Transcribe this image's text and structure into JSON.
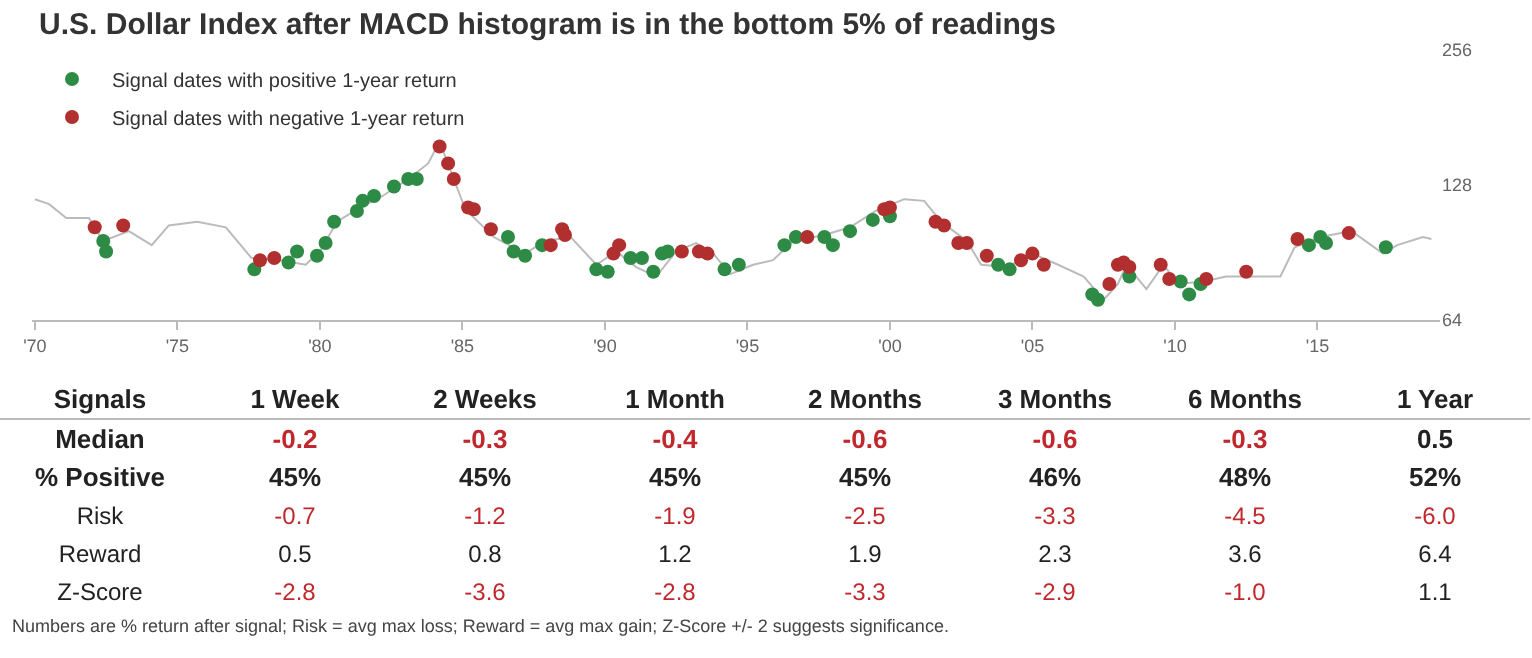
{
  "chart_data": [
    {
      "type": "line",
      "title": "U.S. Dollar Index after MACD histogram is in the bottom 5% of readings",
      "log": true,
      "grid": false,
      "legend": "top left",
      "xlim": [
        1969.9,
        2019.3
      ],
      "xticks": [
        {
          "value": 1970,
          "label": "'70"
        },
        {
          "value": 1975,
          "label": "'75"
        },
        {
          "value": 1980,
          "label": "'80"
        },
        {
          "value": 1985,
          "label": "'85"
        },
        {
          "value": 1990,
          "label": "'90"
        },
        {
          "value": 1995,
          "label": "'95"
        },
        {
          "value": 2000,
          "label": "'00"
        },
        {
          "value": 2005,
          "label": "'05"
        },
        {
          "value": 2010,
          "label": "'10"
        },
        {
          "value": 2015,
          "label": "'15"
        }
      ],
      "ylim": [
        64,
        256
      ],
      "yticks": [
        64,
        128,
        256
      ],
      "series": [
        {
          "marker": "none",
          "color": "#bbbbbb",
          "x": [
            1970.0,
            1970.5,
            1971.1,
            1971.9,
            1972.4,
            1973.3,
            1974.1,
            1974.7,
            1975.7,
            1976.7,
            1977.6,
            1978.6,
            1979.5,
            1980.0,
            1980.6,
            1981.3,
            1982.2,
            1983.1,
            1983.8,
            1984.2,
            1984.7,
            1985.1,
            1986.1,
            1987.2,
            1987.9,
            1988.8,
            1989.7,
            1990.4,
            1991.1,
            1991.8,
            1992.5,
            1993.2,
            1993.8,
            1994.4,
            1995.2,
            1995.9,
            1996.6,
            1997.7,
            1998.6,
            1999.5,
            2000.5,
            2001.2,
            2001.8,
            2002.7,
            2003.2,
            2004.1,
            2005.0,
            2005.9,
            2006.8,
            2007.5,
            2008.0,
            2008.3,
            2009.0,
            2009.6,
            2010.1,
            2011.0,
            2011.8,
            2012.8,
            2013.7,
            2014.2,
            2015.1,
            2016.2,
            2017.3,
            2017.8,
            2018.7,
            2019.0
          ],
          "values": [
            119,
            116,
            108,
            108,
            96,
            101,
            94,
            104,
            106,
            103,
            88,
            87,
            85,
            91,
            106,
            113,
            121,
            132,
            143,
            160,
            132,
            113,
            98,
            90,
            96,
            98,
            85,
            91,
            84,
            80,
            91,
            95,
            90,
            81,
            85,
            87,
            96,
            99,
            103,
            112,
            119,
            118,
            106,
            96,
            85,
            84,
            90,
            85,
            80,
            71,
            77,
            85,
            75,
            85,
            77,
            78,
            80,
            80,
            80,
            93,
            98,
            101,
            90,
            94,
            98,
            97
          ]
        },
        {
          "type": "scatter",
          "marker": "circle",
          "name": "Signal dates with positive 1-year return",
          "color": "#2e8b46",
          "x": [
            1972.4,
            1972.5,
            1977.7,
            1978.9,
            1979.2,
            1979.9,
            1980.2,
            1980.5,
            1981.3,
            1981.5,
            1981.9,
            1982.6,
            1983.1,
            1983.4,
            1986.6,
            1986.8,
            1987.2,
            1987.8,
            1989.7,
            1990.1,
            1990.9,
            1991.3,
            1991.7,
            1992.0,
            1992.2,
            1994.2,
            1994.7,
            1996.3,
            1996.7,
            1997.7,
            1998.0,
            1998.6,
            1999.4,
            2000.0,
            2003.8,
            2004.2,
            2007.1,
            2007.3,
            2008.4,
            2010.2,
            2010.5,
            2010.9,
            2014.7,
            2015.1,
            2015.3,
            2017.4
          ],
          "values": [
            96,
            91,
            83,
            86,
            91,
            89,
            95,
            106,
            112,
            118,
            121,
            127,
            132,
            132,
            98,
            91,
            89,
            94,
            83,
            82,
            88,
            88,
            82,
            90,
            91,
            83,
            85,
            94,
            98,
            98,
            94,
            101,
            107,
            109,
            85,
            83,
            73,
            71,
            80,
            78,
            73,
            77,
            94,
            98,
            95,
            93
          ]
        },
        {
          "type": "scatter",
          "marker": "circle",
          "name": "Signal dates with negative 1-year return",
          "color": "#b22f2f",
          "x": [
            1972.1,
            1973.1,
            1977.9,
            1978.4,
            1984.2,
            1984.5,
            1984.7,
            1985.2,
            1985.4,
            1986.0,
            1988.1,
            1988.5,
            1988.6,
            1990.3,
            1990.5,
            1992.7,
            1993.3,
            1993.6,
            1997.1,
            1999.8,
            2000.0,
            2001.6,
            2001.9,
            2002.4,
            2002.7,
            2003.4,
            2004.6,
            2005.0,
            2005.4,
            2007.7,
            2008.0,
            2008.2,
            2008.4,
            2009.5,
            2009.8,
            2011.1,
            2012.5,
            2014.3,
            2016.1
          ],
          "values": [
            103,
            104,
            87,
            88,
            156,
            143,
            132,
            114,
            113,
            102,
            94,
            102,
            99,
            90,
            94,
            91,
            91,
            90,
            98,
            113,
            114,
            106,
            104,
            95,
            95,
            89,
            87,
            90,
            85,
            77,
            85,
            86,
            84,
            85,
            79,
            79,
            82,
            97,
            100
          ]
        }
      ]
    },
    {
      "type": "other",
      "ylabel": "Signals",
      "categories": [
        "1 Week",
        "2 Weeks",
        "1 Month",
        "2 Months",
        "3 Months",
        "6 Months",
        "1 Year"
      ],
      "y_categories": [
        "Median",
        "% Positive",
        "Risk",
        "Reward",
        "Z-Score"
      ],
      "cell_labels": [
        [
          "-0.2",
          "-0.3",
          "-0.4",
          "-0.6",
          "-0.6",
          "-0.3",
          "0.5"
        ],
        [
          "45%",
          "45%",
          "45%",
          "45%",
          "46%",
          "48%",
          "52%"
        ],
        [
          "-0.7",
          "-1.2",
          "-1.9",
          "-2.5",
          "-3.3",
          "-4.5",
          "-6.0"
        ],
        [
          "0.5",
          "0.8",
          "1.2",
          "1.9",
          "2.3",
          "3.6",
          "6.4"
        ],
        [
          "-2.8",
          "-3.6",
          "-2.8",
          "-3.3",
          "-2.9",
          "-1.0",
          "1.1"
        ]
      ],
      "annotations": [
        "Numbers are % return after signal; Risk = avg max loss; Reward = avg max gain; Z-Score +/- 2 suggests significance."
      ]
    }
  ]
}
